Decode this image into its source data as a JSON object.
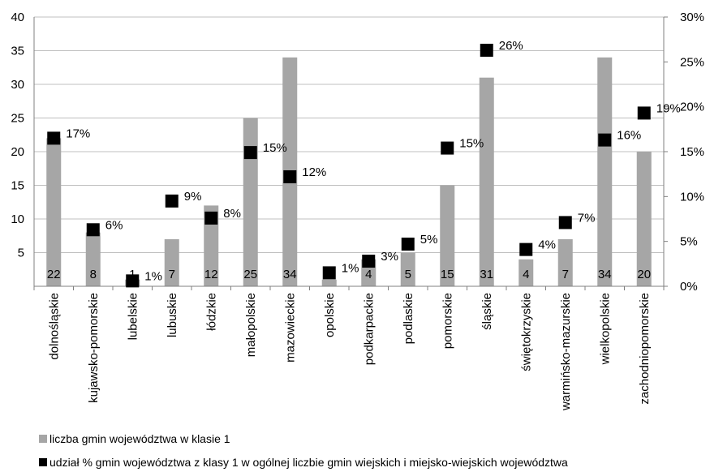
{
  "chart_data": {
    "type": "bar",
    "categories": [
      "dolnośląskie",
      "kujawsko-pomorskie",
      "lubelskie",
      "lubuskie",
      "łódzkie",
      "małopolskie",
      "mazowieckie",
      "opolskie",
      "podkarpackie",
      "podlaskie",
      "pomorskie",
      "śląskie",
      "świętokrzyskie",
      "warmińsko-mazurskie",
      "wielkopolskie",
      "zachodniopomorskie"
    ],
    "series": [
      {
        "name": "liczba gmin województwa w klasie 1",
        "type": "bar",
        "axis": "left",
        "color": "#a6a6a6",
        "values": [
          22,
          8,
          1,
          7,
          12,
          25,
          34,
          1,
          4,
          5,
          15,
          31,
          4,
          7,
          34,
          20
        ],
        "labels": [
          "22",
          "8",
          "1",
          "7",
          "12",
          "25",
          "34",
          "1",
          "4",
          "5",
          "15",
          "31",
          "4",
          "7",
          "34",
          "20"
        ]
      },
      {
        "name": "udział % gmin województwa z klasy 1 w ogólnej liczbie gmin wiejskich i miejsko-wiejskich województwa",
        "type": "marker",
        "axis": "right",
        "color": "#000000",
        "values": [
          16.5,
          6.3,
          0.6,
          9.5,
          7.6,
          14.9,
          12.2,
          1.5,
          2.8,
          4.7,
          15.4,
          26.3,
          4.1,
          7.1,
          16.3,
          19.3
        ],
        "labels": [
          "17%",
          "6%",
          "1%",
          "9%",
          "8%",
          "15%",
          "12%",
          "1%",
          "3%",
          "5%",
          "15%",
          "26%",
          "4%",
          "7%",
          "16%",
          "19%"
        ]
      }
    ],
    "left_axis": {
      "min": 0,
      "max": 40,
      "ticks": [
        "5",
        "10",
        "15",
        "20",
        "25",
        "30",
        "35",
        "40"
      ]
    },
    "right_axis": {
      "min": 0,
      "max": 30,
      "ticks": [
        "0%",
        "5%",
        "10%",
        "15%",
        "20%",
        "25%",
        "30%"
      ]
    },
    "grid": true,
    "legend_position": "bottom-left"
  }
}
